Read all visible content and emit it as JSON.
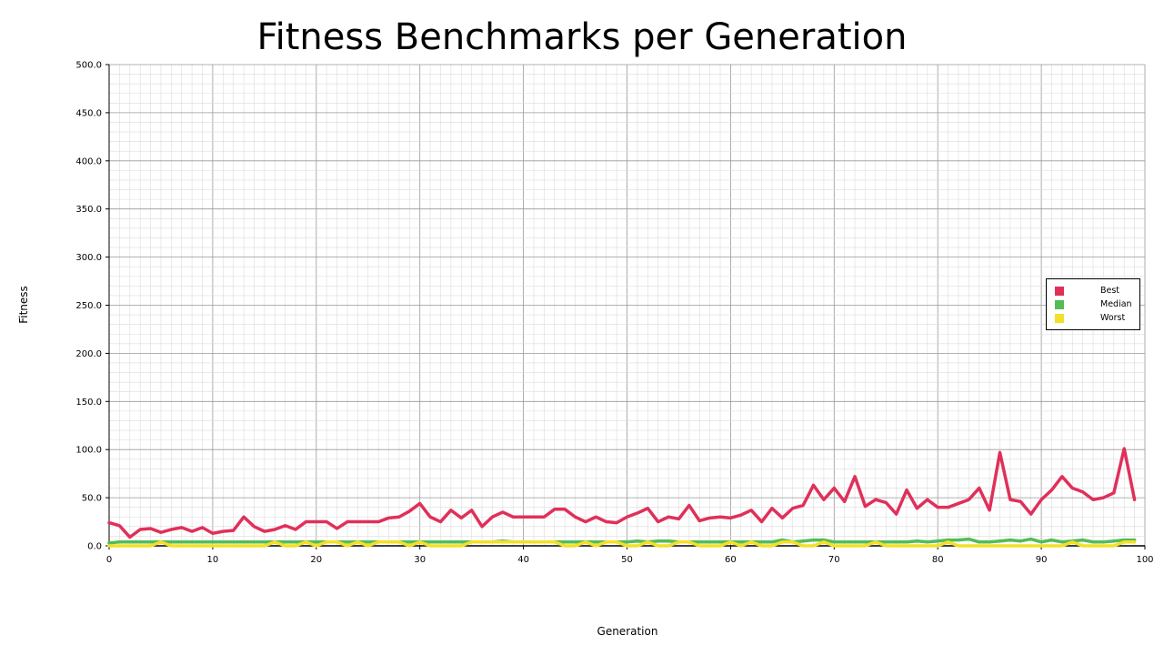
{
  "chart_data": {
    "type": "line",
    "title": "Fitness Benchmarks per Generation",
    "xlabel": "Generation",
    "ylabel": "Fitness",
    "xlim": [
      0,
      100
    ],
    "ylim": [
      0,
      500
    ],
    "x_ticks": [
      "0",
      "10",
      "20",
      "30",
      "40",
      "50",
      "60",
      "70",
      "80",
      "90",
      "100"
    ],
    "y_ticks": [
      "0.0",
      "50.0",
      "100.0",
      "150.0",
      "200.0",
      "250.0",
      "300.0",
      "350.0",
      "400.0",
      "450.0",
      "500.0"
    ],
    "grid": true,
    "legend_position": "right",
    "series": [
      {
        "name": "Best",
        "color": "#e0305a",
        "values": [
          24,
          21,
          9,
          17,
          18,
          14,
          17,
          19,
          15,
          19,
          13,
          15,
          16,
          30,
          20,
          15,
          17,
          21,
          17,
          25,
          25,
          25,
          18,
          25,
          25,
          25,
          25,
          29,
          30,
          36,
          44,
          30,
          25,
          37,
          29,
          37,
          20,
          30,
          35,
          30,
          30,
          30,
          30,
          38,
          38,
          30,
          25,
          30,
          25,
          24,
          30,
          34,
          39,
          25,
          30,
          28,
          42,
          26,
          29,
          30,
          29,
          32,
          37,
          25,
          39,
          29,
          39,
          42,
          63,
          48,
          60,
          46,
          72,
          41,
          48,
          45,
          33,
          58,
          39,
          48,
          40,
          40,
          44,
          48,
          60,
          37,
          97,
          48,
          46,
          33,
          48,
          58,
          72,
          60,
          56,
          48,
          50,
          55,
          101,
          48
        ]
      },
      {
        "name": "Median",
        "color": "#55bb55",
        "values": [
          3,
          4,
          4,
          4,
          4,
          4,
          4,
          4,
          4,
          4,
          4,
          4,
          4,
          4,
          4,
          4,
          4,
          4,
          4,
          4,
          4,
          4,
          4,
          4,
          4,
          4,
          4,
          4,
          4,
          4,
          4,
          4,
          4,
          4,
          4,
          4,
          4,
          4,
          5,
          4,
          4,
          4,
          4,
          4,
          4,
          4,
          4,
          4,
          4,
          4,
          4,
          5,
          4,
          5,
          5,
          4,
          4,
          4,
          4,
          4,
          4,
          4,
          4,
          4,
          4,
          6,
          4,
          5,
          6,
          6,
          4,
          4,
          4,
          4,
          4,
          4,
          4,
          4,
          5,
          4,
          5,
          6,
          6,
          7,
          4,
          4,
          5,
          6,
          5,
          7,
          4,
          6,
          4,
          5,
          6,
          4,
          4,
          5,
          6,
          6
        ]
      },
      {
        "name": "Worst",
        "color": "#f2e02a",
        "values": [
          0,
          0,
          0,
          0,
          0,
          4,
          0,
          0,
          0,
          0,
          0,
          0,
          0,
          0,
          0,
          0,
          4,
          0,
          0,
          4,
          0,
          4,
          4,
          0,
          4,
          0,
          4,
          4,
          4,
          0,
          4,
          0,
          0,
          0,
          0,
          4,
          4,
          4,
          4,
          4,
          4,
          4,
          4,
          4,
          0,
          0,
          4,
          0,
          4,
          4,
          0,
          0,
          4,
          0,
          0,
          4,
          4,
          0,
          0,
          0,
          4,
          0,
          4,
          0,
          0,
          4,
          4,
          0,
          0,
          4,
          0,
          0,
          0,
          0,
          4,
          0,
          0,
          0,
          0,
          0,
          0,
          4,
          0,
          0,
          0,
          0,
          0,
          0,
          0,
          0,
          0,
          0,
          0,
          4,
          0,
          0,
          0,
          0,
          4,
          4
        ]
      }
    ]
  }
}
